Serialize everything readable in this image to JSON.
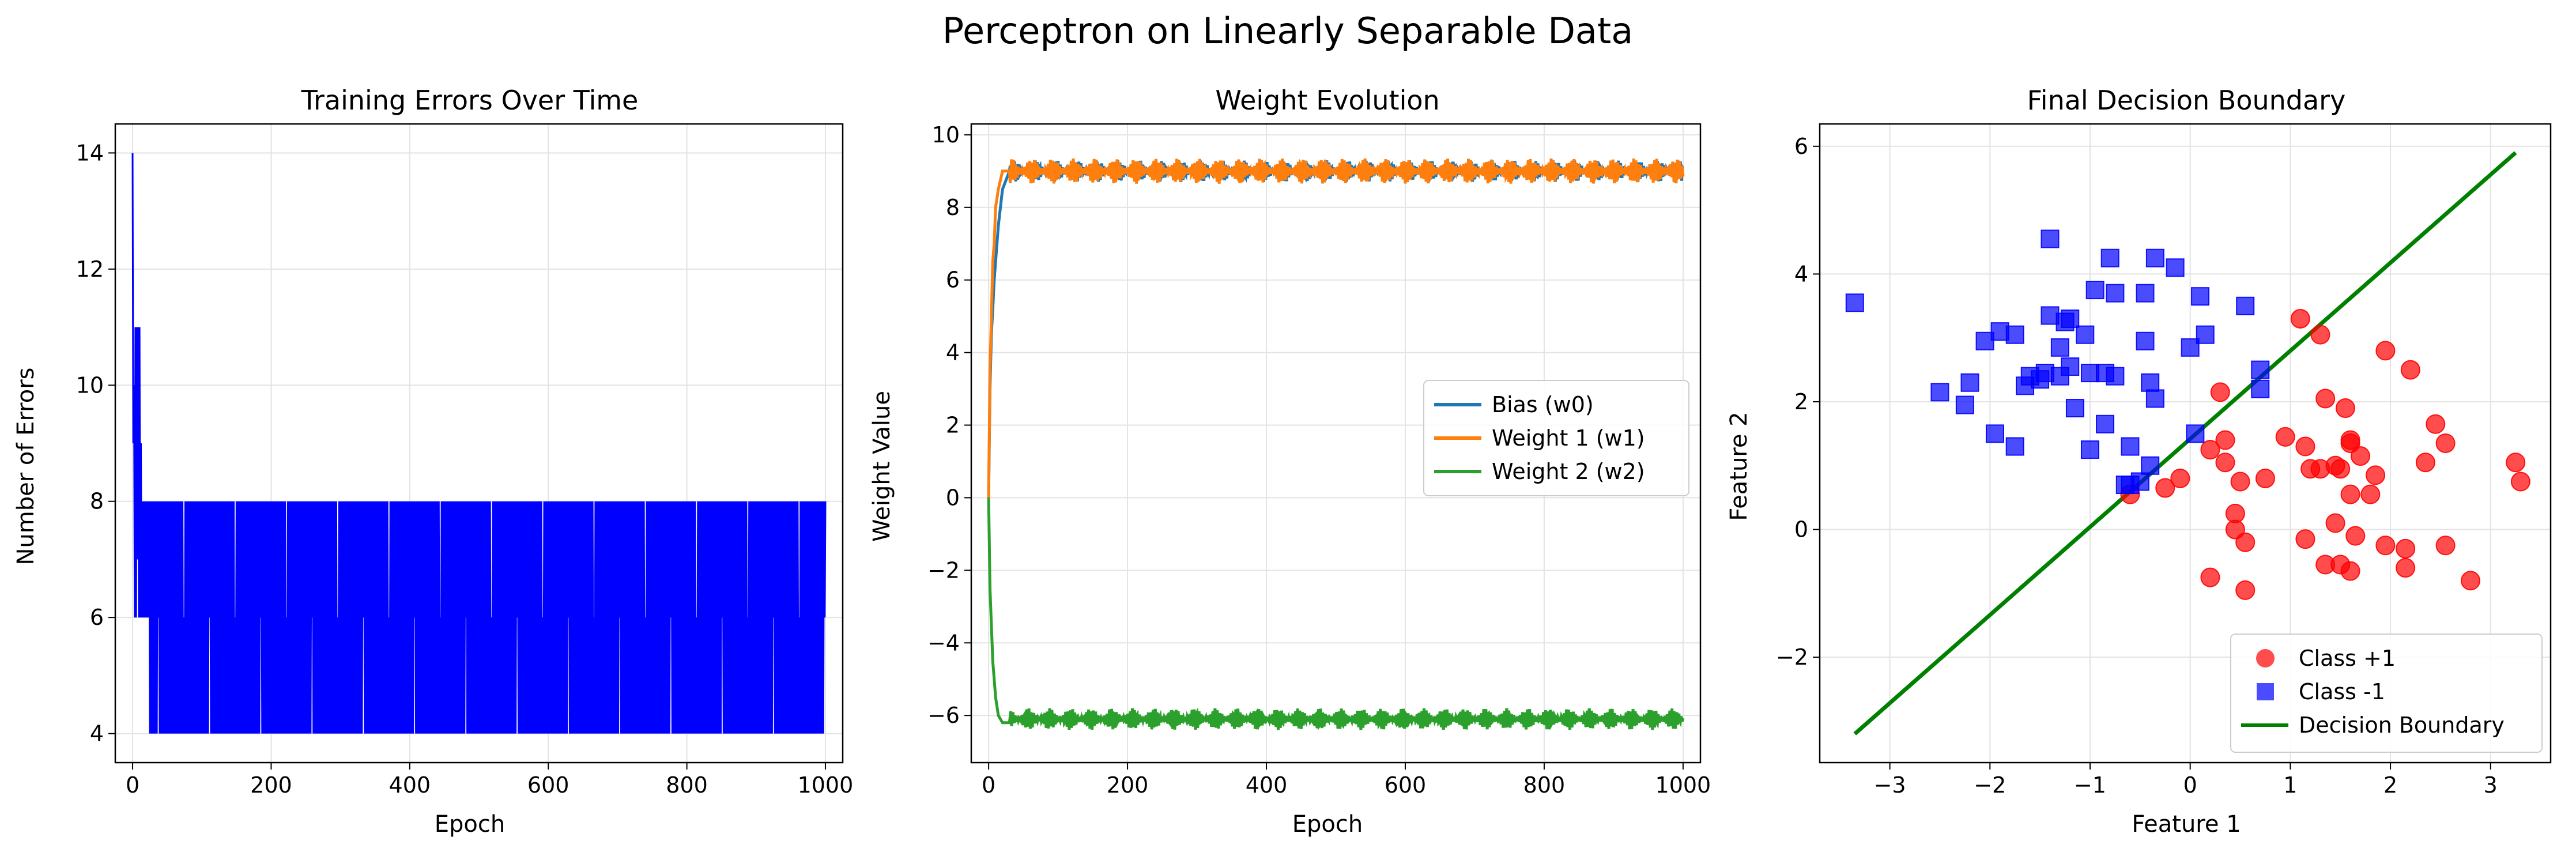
{
  "figure": {
    "suptitle": "Perceptron on Linearly Separable Data"
  },
  "chart_data": [
    {
      "type": "line",
      "title": "Training Errors Over Time",
      "xlabel": "Epoch",
      "ylabel": "Number of Errors",
      "xlim": [
        -25,
        1025
      ],
      "ylim": [
        3.5,
        14.5
      ],
      "xticks": [
        0,
        200,
        400,
        600,
        800,
        1000
      ],
      "yticks": [
        4,
        6,
        8,
        10,
        12,
        14
      ],
      "grid": true,
      "series": [
        {
          "color": "#0000ff",
          "x": [
            0,
            1,
            2,
            3,
            4,
            5,
            6,
            7,
            8,
            9,
            10,
            11,
            12,
            13,
            14,
            15,
            16,
            17,
            18,
            19,
            20,
            21,
            22,
            23,
            24,
            25
          ],
          "values": [
            14,
            9,
            10,
            6,
            11,
            6,
            11,
            7,
            11,
            6,
            11,
            6,
            9,
            6,
            8,
            6,
            8,
            6,
            8,
            6,
            8,
            6,
            8,
            6,
            8,
            4
          ],
          "note_oscillation": "after epoch 25 the count alternates between 4 and 8 through epoch 1000 (with 6 occasionally)",
          "oscillation_range": [
            25,
            1000
          ],
          "oscillation_values": [
            4,
            8,
            6
          ]
        }
      ]
    },
    {
      "type": "line",
      "title": "Weight Evolution",
      "xlabel": "Epoch",
      "ylabel": "Weight Value",
      "xlim": [
        -25,
        1025
      ],
      "ylim": [
        -7.3,
        10.3
      ],
      "xticks": [
        0,
        200,
        400,
        600,
        800,
        1000
      ],
      "yticks": [
        -6,
        -4,
        -2,
        0,
        2,
        4,
        6,
        8,
        10
      ],
      "grid": true,
      "legend": "center-right",
      "series": [
        {
          "name": "Bias (w0)",
          "color": "#1f77b4",
          "x": [
            0,
            2,
            4,
            6,
            8,
            10,
            14,
            20,
            30
          ],
          "values": [
            0,
            3,
            4.5,
            5.2,
            6,
            6.5,
            7.5,
            8.5,
            9
          ],
          "oscillation_center": 9.0,
          "oscillation_amplitude": 0.3
        },
        {
          "name": "Weight 1 (w1)",
          "color": "#ff7f0e",
          "x": [
            0,
            2,
            4,
            6,
            8,
            10,
            14,
            20,
            30
          ],
          "values": [
            0,
            3.5,
            5,
            6.5,
            7,
            8,
            8.5,
            9,
            9
          ],
          "oscillation_center": 9.0,
          "oscillation_amplitude": 0.35
        },
        {
          "name": "Weight 2 (w2)",
          "color": "#2ca02c",
          "x": [
            0,
            2,
            4,
            6,
            8,
            10,
            14,
            20,
            30
          ],
          "values": [
            0,
            -2.5,
            -3.5,
            -4.5,
            -5,
            -5.5,
            -6,
            -6.2,
            -6.2
          ],
          "oscillation_center": -6.1,
          "oscillation_amplitude": 0.3
        }
      ]
    },
    {
      "type": "scatter",
      "title": "Final Decision Boundary",
      "xlabel": "Feature 1",
      "ylabel": "Feature 2",
      "xlim": [
        -3.7,
        3.6
      ],
      "ylim": [
        -3.65,
        6.35
      ],
      "xticks": [
        -3,
        -2,
        -1,
        0,
        1,
        2,
        3
      ],
      "yticks": [
        -2,
        0,
        2,
        4,
        6
      ],
      "grid": true,
      "legend": "bottom-right",
      "series": [
        {
          "name": "Class +1",
          "color": "#ff0000",
          "marker": "circle",
          "points": [
            [
              1.1,
              3.3
            ],
            [
              1.3,
              3.05
            ],
            [
              1.95,
              2.8
            ],
            [
              2.2,
              2.5
            ],
            [
              1.35,
              2.05
            ],
            [
              1.55,
              1.9
            ],
            [
              0.3,
              2.15
            ],
            [
              2.45,
              1.65
            ],
            [
              2.55,
              1.35
            ],
            [
              2.35,
              1.05
            ],
            [
              3.25,
              1.05
            ],
            [
              3.3,
              0.75
            ],
            [
              1.6,
              1.35
            ],
            [
              1.6,
              1.4
            ],
            [
              1.7,
              1.15
            ],
            [
              0.95,
              1.45
            ],
            [
              0.2,
              1.25
            ],
            [
              0.35,
              1.4
            ],
            [
              1.15,
              1.3
            ],
            [
              1.2,
              0.95
            ],
            [
              1.3,
              0.95
            ],
            [
              1.5,
              0.95
            ],
            [
              0.35,
              1.05
            ],
            [
              0.5,
              0.75
            ],
            [
              0.75,
              0.8
            ],
            [
              1.45,
              1.0
            ],
            [
              1.85,
              0.85
            ],
            [
              1.6,
              0.55
            ],
            [
              1.8,
              0.55
            ],
            [
              -0.1,
              0.8
            ],
            [
              -0.25,
              0.65
            ],
            [
              -0.6,
              0.55
            ],
            [
              0.45,
              0.25
            ],
            [
              0.45,
              0.0
            ],
            [
              1.45,
              0.1
            ],
            [
              1.65,
              -0.1
            ],
            [
              1.15,
              -0.15
            ],
            [
              1.95,
              -0.25
            ],
            [
              2.15,
              -0.3
            ],
            [
              2.55,
              -0.25
            ],
            [
              0.55,
              -0.2
            ],
            [
              1.35,
              -0.55
            ],
            [
              1.5,
              -0.55
            ],
            [
              1.6,
              -0.65
            ],
            [
              2.15,
              -0.6
            ],
            [
              0.2,
              -0.75
            ],
            [
              0.55,
              -0.95
            ],
            [
              2.8,
              -0.8
            ]
          ]
        },
        {
          "name": "Class -1",
          "color": "#0000ff",
          "marker": "square",
          "points": [
            [
              -3.35,
              3.55
            ],
            [
              -1.4,
              4.55
            ],
            [
              -0.8,
              4.25
            ],
            [
              -0.35,
              4.25
            ],
            [
              -0.15,
              4.1
            ],
            [
              -0.95,
              3.75
            ],
            [
              -0.75,
              3.7
            ],
            [
              -0.45,
              3.7
            ],
            [
              0.1,
              3.65
            ],
            [
              0.55,
              3.5
            ],
            [
              -1.4,
              3.35
            ],
            [
              -1.2,
              3.3
            ],
            [
              -1.25,
              3.25
            ],
            [
              -1.05,
              3.05
            ],
            [
              -0.45,
              2.95
            ],
            [
              -1.9,
              3.1
            ],
            [
              -1.75,
              3.05
            ],
            [
              -2.05,
              2.95
            ],
            [
              0.15,
              3.05
            ],
            [
              0.0,
              2.85
            ],
            [
              -1.3,
              2.85
            ],
            [
              -1.2,
              2.55
            ],
            [
              -1.45,
              2.45
            ],
            [
              -1.3,
              2.4
            ],
            [
              -1.6,
              2.4
            ],
            [
              -1.5,
              2.35
            ],
            [
              -1.65,
              2.25
            ],
            [
              -1.0,
              2.45
            ],
            [
              -0.85,
              2.45
            ],
            [
              -0.75,
              2.4
            ],
            [
              -0.4,
              2.3
            ],
            [
              -0.35,
              2.05
            ],
            [
              0.7,
              2.5
            ],
            [
              0.7,
              2.2
            ],
            [
              -2.2,
              2.3
            ],
            [
              -2.5,
              2.15
            ],
            [
              -2.25,
              1.95
            ],
            [
              -1.15,
              1.9
            ],
            [
              -0.85,
              1.65
            ],
            [
              -1.95,
              1.5
            ],
            [
              -1.75,
              1.3
            ],
            [
              -1.0,
              1.25
            ],
            [
              -0.6,
              1.3
            ],
            [
              0.05,
              1.5
            ],
            [
              -0.4,
              1.0
            ],
            [
              -0.5,
              0.75
            ],
            [
              -0.6,
              0.7
            ],
            [
              -0.65,
              0.7
            ]
          ]
        }
      ],
      "boundary": {
        "name": "Decision Boundary",
        "color": "#008000",
        "x": [
          -3.35,
          3.25
        ],
        "y": [
          -3.2,
          5.9
        ]
      }
    }
  ]
}
